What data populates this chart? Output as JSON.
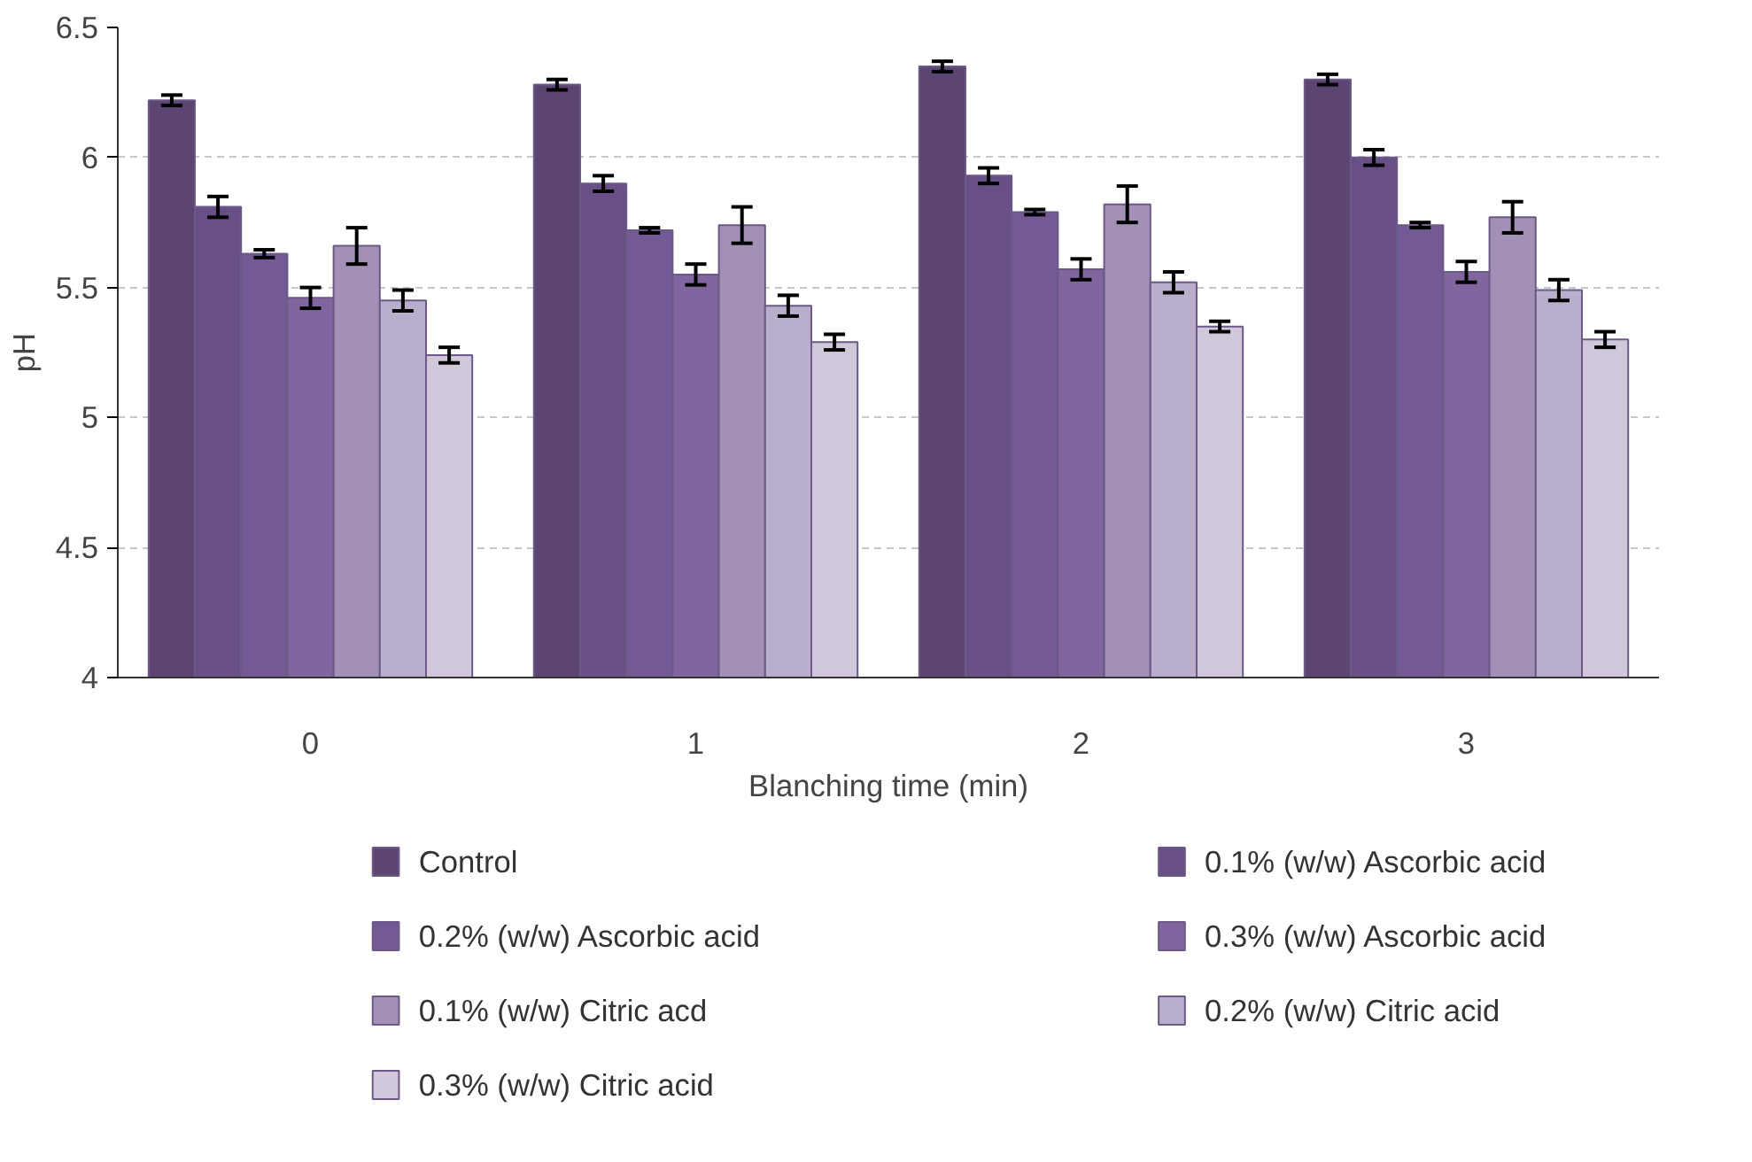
{
  "chart_data": {
    "type": "bar",
    "xlabel": "Blanching time (min)",
    "ylabel": "pH",
    "categories": [
      "0",
      "1",
      "2",
      "3"
    ],
    "series": [
      {
        "name": "Control",
        "color": "#5c4573",
        "values": [
          6.22,
          6.28,
          6.35,
          6.3
        ],
        "errors": [
          0.02,
          0.02,
          0.02,
          0.02
        ]
      },
      {
        "name": "0.1% (w/w) Ascorbic acid",
        "color": "#684f86",
        "values": [
          5.81,
          5.9,
          5.93,
          6.0
        ],
        "errors": [
          0.04,
          0.03,
          0.03,
          0.03
        ]
      },
      {
        "name": "0.2% (w/w) Ascorbic acid",
        "color": "#735a94",
        "values": [
          5.63,
          5.72,
          5.79,
          5.74
        ],
        "errors": [
          0.015,
          0.01,
          0.01,
          0.01
        ]
      },
      {
        "name": "0.3% (w/w) Ascorbic acid",
        "color": "#80659f",
        "values": [
          5.46,
          5.55,
          5.57,
          5.56
        ],
        "errors": [
          0.04,
          0.04,
          0.04,
          0.04
        ]
      },
      {
        "name": "0.1% (w/w) Citric acd",
        "color": "#a290b7",
        "values": [
          5.66,
          5.74,
          5.82,
          5.77
        ],
        "errors": [
          0.07,
          0.07,
          0.07,
          0.06
        ]
      },
      {
        "name": "0.2% (w/w) Citric acid",
        "color": "#b9aecb",
        "values": [
          5.45,
          5.43,
          5.52,
          5.49
        ],
        "errors": [
          0.04,
          0.04,
          0.04,
          0.04
        ]
      },
      {
        "name": "0.3% (w/w) Citric acid",
        "color": "#d0c8da",
        "values": [
          5.24,
          5.29,
          5.35,
          5.3
        ],
        "errors": [
          0.03,
          0.03,
          0.02,
          0.03
        ]
      }
    ],
    "ylim": [
      4,
      6.5
    ],
    "yticks": [
      4,
      4.5,
      5,
      5.5,
      6,
      6.5
    ],
    "grid": "y",
    "legend": "bottom"
  }
}
